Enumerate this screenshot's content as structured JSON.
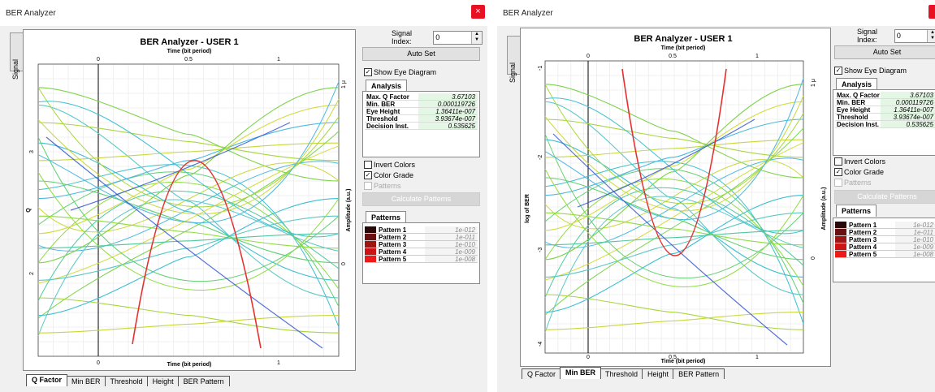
{
  "colors": {
    "accent_close": "#e81123",
    "red_curve": "#e53030",
    "blue_curve": "#2a4fd0"
  },
  "windows": [
    {
      "title": "BER Analyzer",
      "close_label": "×",
      "signal_tab": "Signal",
      "chart_title": "BER Analyzer - USER 1",
      "x_title_top": "Time (bit period)",
      "x_title_bottom": "Time (bit period)",
      "y_label_left": "Q",
      "y_label_right": "Amplitude (a.u.)",
      "x_ticks": [
        "0",
        "0.5",
        "1"
      ],
      "y_left_ticks": [
        "3",
        "2"
      ],
      "y_right_ticks": [
        "1 μ",
        "0"
      ],
      "tabs": [
        "Q Factor",
        "Min BER",
        "Threshold",
        "Height",
        "BER Pattern"
      ],
      "active_tab": 0,
      "signal_index_label": "Signal Index:",
      "signal_index_value": "0",
      "auto_set": "Auto Set",
      "show_eye": "Show Eye Diagram",
      "analysis_tab": "Analysis",
      "analysis": [
        {
          "k": "Max. Q Factor",
          "v": "3.67103"
        },
        {
          "k": "Min. BER",
          "v": "0.000119726"
        },
        {
          "k": "Eye Height",
          "v": "1.36411e-007"
        },
        {
          "k": "Threshold",
          "v": "3.93674e-007"
        },
        {
          "k": "Decision Inst.",
          "v": "0.535625"
        }
      ],
      "invert_colors": "Invert Colors",
      "color_grade": "Color Grade",
      "patterns_cb": "Patterns",
      "calc_patterns": "Calculate Patterns",
      "patterns_tab": "Patterns",
      "patterns": [
        {
          "name": "Pattern 1",
          "val": "1e-012",
          "color": "#2a0808"
        },
        {
          "name": "Pattern 2",
          "val": "1e-011",
          "color": "#6a1010"
        },
        {
          "name": "Pattern 3",
          "val": "1e-010",
          "color": "#a01414"
        },
        {
          "name": "Pattern 4",
          "val": "1e-009",
          "color": "#cc1414"
        },
        {
          "name": "Pattern 5",
          "val": "1e-008",
          "color": "#ee1a1a"
        }
      ]
    },
    {
      "title": "BER Analyzer",
      "signal_tab": "Signal",
      "chart_title": "BER Analyzer - USER 1",
      "x_title_top": "Time (bit period)",
      "x_title_bottom": "Time (bit period)",
      "y_label_left": "log of BER",
      "y_label_right": "Amplitude (a.u.)",
      "x_ticks": [
        "0",
        "0.5",
        "1"
      ],
      "y_left_ticks": [
        "-1",
        "-2",
        "-3",
        "-4"
      ],
      "y_right_ticks": [
        "1 μ",
        "0"
      ],
      "tabs": [
        "Q Factor",
        "Min BER",
        "Threshold",
        "Height",
        "BER Pattern"
      ],
      "active_tab": 1,
      "signal_index_label": "Signal Index:",
      "signal_index_value": "0",
      "auto_set": "Auto Set",
      "show_eye": "Show Eye Diagram",
      "analysis_tab": "Analysis",
      "analysis": [
        {
          "k": "Max. Q Factor",
          "v": "3.67103"
        },
        {
          "k": "Min. BER",
          "v": "0.000119726"
        },
        {
          "k": "Eye Height",
          "v": "1.36411e-007"
        },
        {
          "k": "Threshold",
          "v": "3.93674e-007"
        },
        {
          "k": "Decision Inst.",
          "v": "0.535625"
        }
      ],
      "invert_colors": "Invert Colors",
      "color_grade": "Color Grade",
      "patterns_cb": "Patterns",
      "calc_patterns": "Calculate Patterns",
      "patterns_tab": "Patterns",
      "patterns": [
        {
          "name": "Pattern 1",
          "val": "1e-012",
          "color": "#2a0808"
        },
        {
          "name": "Pattern 2",
          "val": "1e-011",
          "color": "#6a1010"
        },
        {
          "name": "Pattern 3",
          "val": "1e-010",
          "color": "#a01414"
        },
        {
          "name": "Pattern 4",
          "val": "1e-009",
          "color": "#cc1414"
        },
        {
          "name": "Pattern 5",
          "val": "1e-008",
          "color": "#ee1a1a"
        }
      ]
    }
  ]
}
